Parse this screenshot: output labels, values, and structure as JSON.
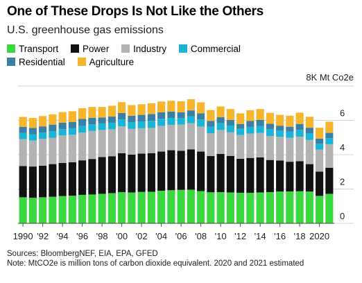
{
  "header": {
    "title": "One of These Drops Is Not Like the Others",
    "subtitle": "U.S. greenhouse gas emissions"
  },
  "legend": [
    {
      "label": "Transport",
      "color": "#39d93f"
    },
    {
      "label": "Power",
      "color": "#111111"
    },
    {
      "label": "Industry",
      "color": "#b3b3b3"
    },
    {
      "label": "Commercial",
      "color": "#19b5d8"
    },
    {
      "label": "Residential",
      "color": "#3a7fa6"
    },
    {
      "label": "Agriculture",
      "color": "#f7b52c"
    }
  ],
  "footer": {
    "sources": "Sources: BloombergNEF, EIA, EPA, GFED",
    "note": "Note: MtCO2e is million tons of carbon dioxide equivalent. 2020 and 2021 estimated"
  },
  "chart_data": {
    "type": "bar",
    "stacked": true,
    "categories": [
      "1990",
      "1991",
      "1992",
      "1993",
      "1994",
      "1995",
      "1996",
      "1997",
      "1998",
      "1999",
      "2000",
      "2001",
      "2002",
      "2003",
      "2004",
      "2005",
      "2006",
      "2007",
      "2008",
      "2009",
      "2010",
      "2011",
      "2012",
      "2013",
      "2014",
      "2015",
      "2016",
      "2017",
      "2018",
      "2019",
      "2020",
      "2021"
    ],
    "x_tick_labels": [
      "1990",
      "",
      "'92",
      "",
      "'94",
      "",
      "'96",
      "",
      "'98",
      "",
      "'00",
      "",
      "'02",
      "",
      "'04",
      "",
      "'06",
      "",
      "'08",
      "",
      "'10",
      "",
      "'12",
      "",
      "'14",
      "",
      "'16",
      "",
      "'18",
      "",
      "2020",
      ""
    ],
    "y_unit_label": "8K Mt Co2e",
    "y_tick_labels": [
      "0",
      "2",
      "4",
      "6"
    ],
    "y_ticks": [
      0,
      2,
      4,
      6
    ],
    "ylim": [
      0,
      8
    ],
    "grid": true,
    "legend_position": "top",
    "series": [
      {
        "name": "Transport",
        "color": "#39d93f",
        "values": [
          1.52,
          1.49,
          1.52,
          1.55,
          1.59,
          1.61,
          1.66,
          1.68,
          1.72,
          1.76,
          1.82,
          1.8,
          1.83,
          1.84,
          1.9,
          1.93,
          1.95,
          1.96,
          1.88,
          1.81,
          1.82,
          1.8,
          1.78,
          1.78,
          1.8,
          1.82,
          1.85,
          1.86,
          1.87,
          1.85,
          1.6,
          1.72
        ]
      },
      {
        "name": "Power",
        "color": "#111111",
        "values": [
          1.82,
          1.82,
          1.84,
          1.9,
          1.93,
          1.95,
          2.01,
          2.07,
          2.14,
          2.15,
          2.27,
          2.2,
          2.23,
          2.25,
          2.28,
          2.33,
          2.28,
          2.35,
          2.3,
          2.11,
          2.22,
          2.13,
          1.98,
          2.03,
          2.04,
          1.87,
          1.81,
          1.73,
          1.75,
          1.6,
          1.41,
          1.52
        ]
      },
      {
        "name": "Industry",
        "color": "#b3b3b3",
        "values": [
          1.56,
          1.52,
          1.56,
          1.54,
          1.6,
          1.6,
          1.62,
          1.63,
          1.58,
          1.57,
          1.56,
          1.5,
          1.48,
          1.47,
          1.5,
          1.48,
          1.52,
          1.52,
          1.46,
          1.32,
          1.4,
          1.38,
          1.39,
          1.42,
          1.43,
          1.4,
          1.38,
          1.39,
          1.43,
          1.41,
          1.29,
          1.37
        ]
      },
      {
        "name": "Commercial",
        "color": "#19b5d8",
        "values": [
          0.36,
          0.36,
          0.37,
          0.37,
          0.37,
          0.38,
          0.39,
          0.39,
          0.38,
          0.38,
          0.4,
          0.4,
          0.4,
          0.41,
          0.41,
          0.4,
          0.39,
          0.4,
          0.41,
          0.39,
          0.4,
          0.39,
          0.36,
          0.39,
          0.4,
          0.39,
          0.36,
          0.36,
          0.4,
          0.39,
          0.34,
          0.35
        ]
      },
      {
        "name": "Residential",
        "color": "#3a7fa6",
        "values": [
          0.36,
          0.37,
          0.36,
          0.39,
          0.37,
          0.37,
          0.4,
          0.38,
          0.34,
          0.36,
          0.38,
          0.37,
          0.38,
          0.4,
          0.38,
          0.37,
          0.33,
          0.35,
          0.36,
          0.34,
          0.34,
          0.32,
          0.28,
          0.34,
          0.35,
          0.32,
          0.29,
          0.29,
          0.34,
          0.32,
          0.3,
          0.31
        ]
      },
      {
        "name": "Agriculture",
        "color": "#f7b52c",
        "values": [
          0.58,
          0.58,
          0.6,
          0.6,
          0.62,
          0.62,
          0.63,
          0.63,
          0.62,
          0.63,
          0.63,
          0.62,
          0.62,
          0.62,
          0.63,
          0.63,
          0.64,
          0.65,
          0.64,
          0.63,
          0.63,
          0.64,
          0.62,
          0.63,
          0.64,
          0.64,
          0.63,
          0.64,
          0.66,
          0.64,
          0.63,
          0.65
        ]
      }
    ]
  }
}
